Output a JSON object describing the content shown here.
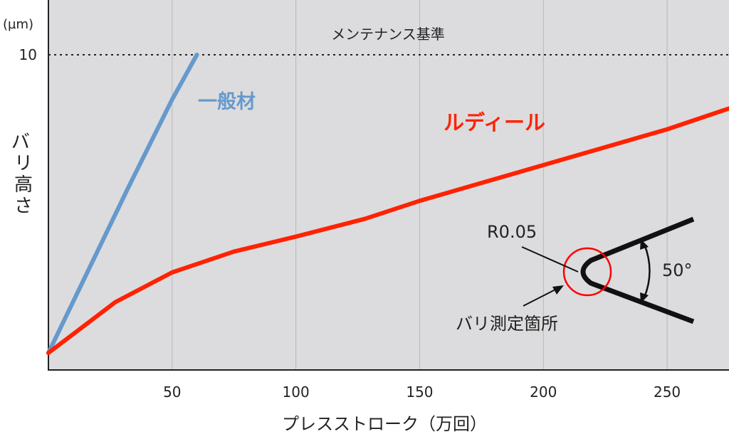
{
  "chart_data": {
    "type": "line",
    "y_unit": "(µm)",
    "ylabel": "バリ高さ",
    "xlabel": "プレスストローク（万回）",
    "xlim": [
      0,
      275
    ],
    "ylim": [
      0,
      10
    ],
    "x_ticks": [
      "50",
      "100",
      "150",
      "200",
      "250"
    ],
    "y_ticks": [
      "10"
    ],
    "grid": "vertical",
    "reference_line": {
      "label": "メンテナンス基準",
      "value": 10
    },
    "series": [
      {
        "name": "一般材",
        "color": "#6699cc",
        "points": [
          {
            "x": 0,
            "y": 0
          },
          {
            "x": 32,
            "y": 5.5
          },
          {
            "x": 50,
            "y": 8.5
          },
          {
            "x": 60,
            "y": 10
          }
        ]
      },
      {
        "name": "ルディール",
        "color": "#ff2200",
        "points": [
          {
            "x": 0,
            "y": 0
          },
          {
            "x": 27,
            "y": 1.7
          },
          {
            "x": 50,
            "y": 2.7
          },
          {
            "x": 75,
            "y": 3.4
          },
          {
            "x": 100,
            "y": 3.9
          },
          {
            "x": 128,
            "y": 4.5
          },
          {
            "x": 150,
            "y": 5.1
          },
          {
            "x": 175,
            "y": 5.7
          },
          {
            "x": 200,
            "y": 6.3
          },
          {
            "x": 225,
            "y": 6.9
          },
          {
            "x": 250,
            "y": 7.5
          },
          {
            "x": 275,
            "y": 8.2
          }
        ]
      }
    ]
  },
  "inset": {
    "radius_label": "R0.05",
    "angle_label": "50°",
    "measure_label": "バリ測定箇所",
    "circle_color": "#ff0000"
  }
}
